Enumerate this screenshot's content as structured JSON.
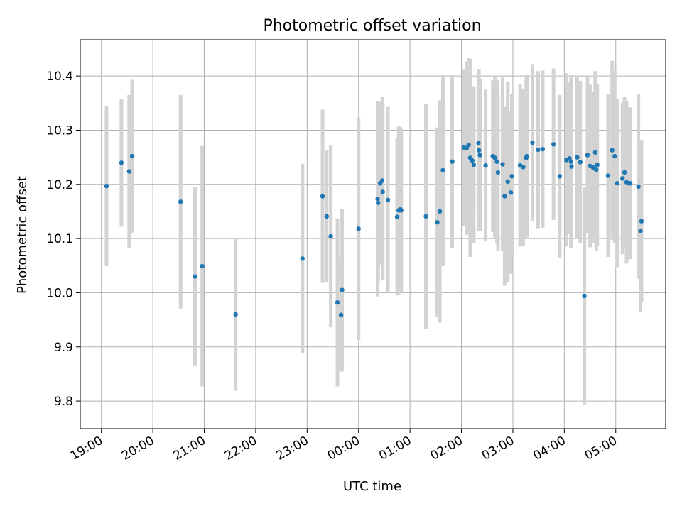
{
  "chart_data": {
    "type": "scatter",
    "title": "Photometric offset variation",
    "xlabel": "UTC time",
    "ylabel": "Photometric offset",
    "grid": true,
    "xlim_hours": [
      18.59,
      29.97
    ],
    "ylim": [
      9.749,
      10.467
    ],
    "x_ticks": [
      {
        "h": 19,
        "label": "19:00"
      },
      {
        "h": 20,
        "label": "20:00"
      },
      {
        "h": 21,
        "label": "21:00"
      },
      {
        "h": 22,
        "label": "22:00"
      },
      {
        "h": 23,
        "label": "23:00"
      },
      {
        "h": 24,
        "label": "00:00"
      },
      {
        "h": 25,
        "label": "01:00"
      },
      {
        "h": 26,
        "label": "02:00"
      },
      {
        "h": 27,
        "label": "03:00"
      },
      {
        "h": 28,
        "label": "04:00"
      },
      {
        "h": 29,
        "label": "05:00"
      }
    ],
    "y_ticks": [
      {
        "v": 9.8,
        "label": "9.8"
      },
      {
        "v": 9.9,
        "label": "9.9"
      },
      {
        "v": 10.0,
        "label": "10.0"
      },
      {
        "v": 10.1,
        "label": "10.1"
      },
      {
        "v": 10.2,
        "label": "10.2"
      },
      {
        "v": 10.3,
        "label": "10.3"
      },
      {
        "v": 10.4,
        "label": "10.4"
      }
    ],
    "colors": {
      "point": "#1f77b4",
      "errorbar": "#d3d3d3",
      "grid": "#b0b0b0"
    },
    "points": [
      [
        19.1,
        10.197,
        0.148
      ],
      [
        19.39,
        10.24,
        0.118
      ],
      [
        19.54,
        10.224,
        0.141
      ],
      [
        19.6,
        10.252,
        0.141
      ],
      [
        20.54,
        10.168,
        0.197
      ],
      [
        20.82,
        10.03,
        0.165
      ],
      [
        20.96,
        10.049,
        0.222
      ],
      [
        21.61,
        9.96,
        0.141
      ],
      [
        22.91,
        10.063,
        0.175
      ],
      [
        23.3,
        10.178,
        0.16
      ],
      [
        23.38,
        10.141,
        0.122
      ],
      [
        23.46,
        10.104,
        0.168
      ],
      [
        23.59,
        9.982,
        0.155
      ],
      [
        23.66,
        9.959,
        0.105
      ],
      [
        23.68,
        10.005,
        0.15
      ],
      [
        24.0,
        10.118,
        0.205
      ],
      [
        24.37,
        10.173,
        0.18
      ],
      [
        24.38,
        10.166,
        0.145
      ],
      [
        24.42,
        10.202,
        0.15
      ],
      [
        24.46,
        10.207,
        0.155
      ],
      [
        24.47,
        10.186,
        0.163
      ],
      [
        24.57,
        10.171,
        0.172
      ],
      [
        24.75,
        10.14,
        0.145
      ],
      [
        24.78,
        10.152,
        0.155
      ],
      [
        24.81,
        10.154,
        0.152
      ],
      [
        24.83,
        10.152,
        0.15
      ],
      [
        25.31,
        10.141,
        0.208
      ],
      [
        25.53,
        10.13,
        0.175
      ],
      [
        25.58,
        10.15,
        0.205
      ],
      [
        25.64,
        10.226,
        0.177
      ],
      [
        25.82,
        10.242,
        0.16
      ],
      [
        26.05,
        10.268,
        0.145
      ],
      [
        26.1,
        10.267,
        0.16
      ],
      [
        26.14,
        10.273,
        0.16
      ],
      [
        26.17,
        10.249,
        0.183
      ],
      [
        26.21,
        10.244,
        0.125
      ],
      [
        26.24,
        10.236,
        0.145
      ],
      [
        26.33,
        10.276,
        0.13
      ],
      [
        26.34,
        10.263,
        0.15
      ],
      [
        26.36,
        10.254,
        0.14
      ],
      [
        26.47,
        10.235,
        0.14
      ],
      [
        26.61,
        10.252,
        0.14
      ],
      [
        26.65,
        10.249,
        0.15
      ],
      [
        26.69,
        10.242,
        0.15
      ],
      [
        26.71,
        10.222,
        0.145
      ],
      [
        26.8,
        10.237,
        0.16
      ],
      [
        26.84,
        10.178,
        0.165
      ],
      [
        26.9,
        10.205,
        0.185
      ],
      [
        26.96,
        10.185,
        0.15
      ],
      [
        26.98,
        10.215,
        0.152
      ],
      [
        27.14,
        10.235,
        0.15
      ],
      [
        27.2,
        10.232,
        0.145
      ],
      [
        27.26,
        10.249,
        0.145
      ],
      [
        27.27,
        10.252,
        0.15
      ],
      [
        27.38,
        10.277,
        0.145
      ],
      [
        27.49,
        10.264,
        0.145
      ],
      [
        27.58,
        10.265,
        0.145
      ],
      [
        27.79,
        10.274,
        0.14
      ],
      [
        27.91,
        10.215,
        0.15
      ],
      [
        28.04,
        10.245,
        0.16
      ],
      [
        28.1,
        10.248,
        0.14
      ],
      [
        28.13,
        10.242,
        0.16
      ],
      [
        28.14,
        10.233,
        0.15
      ],
      [
        28.25,
        10.25,
        0.15
      ],
      [
        28.31,
        10.241,
        0.15
      ],
      [
        28.39,
        9.994,
        0.2
      ],
      [
        28.45,
        10.254,
        0.145
      ],
      [
        28.5,
        10.234,
        0.15
      ],
      [
        28.56,
        10.231,
        0.14
      ],
      [
        28.6,
        10.259,
        0.15
      ],
      [
        28.62,
        10.227,
        0.15
      ],
      [
        28.64,
        10.236,
        0.15
      ],
      [
        28.85,
        10.216,
        0.15
      ],
      [
        28.93,
        10.263,
        0.165
      ],
      [
        28.98,
        10.252,
        0.16
      ],
      [
        29.03,
        10.202,
        0.155
      ],
      [
        29.13,
        10.211,
        0.14
      ],
      [
        29.17,
        10.222,
        0.14
      ],
      [
        29.21,
        10.204,
        0.15
      ],
      [
        29.26,
        10.202,
        0.14
      ],
      [
        29.28,
        10.202,
        0.14
      ],
      [
        29.44,
        10.196,
        0.17
      ],
      [
        29.48,
        10.114,
        0.15
      ],
      [
        29.5,
        10.132,
        0.15
      ]
    ]
  }
}
